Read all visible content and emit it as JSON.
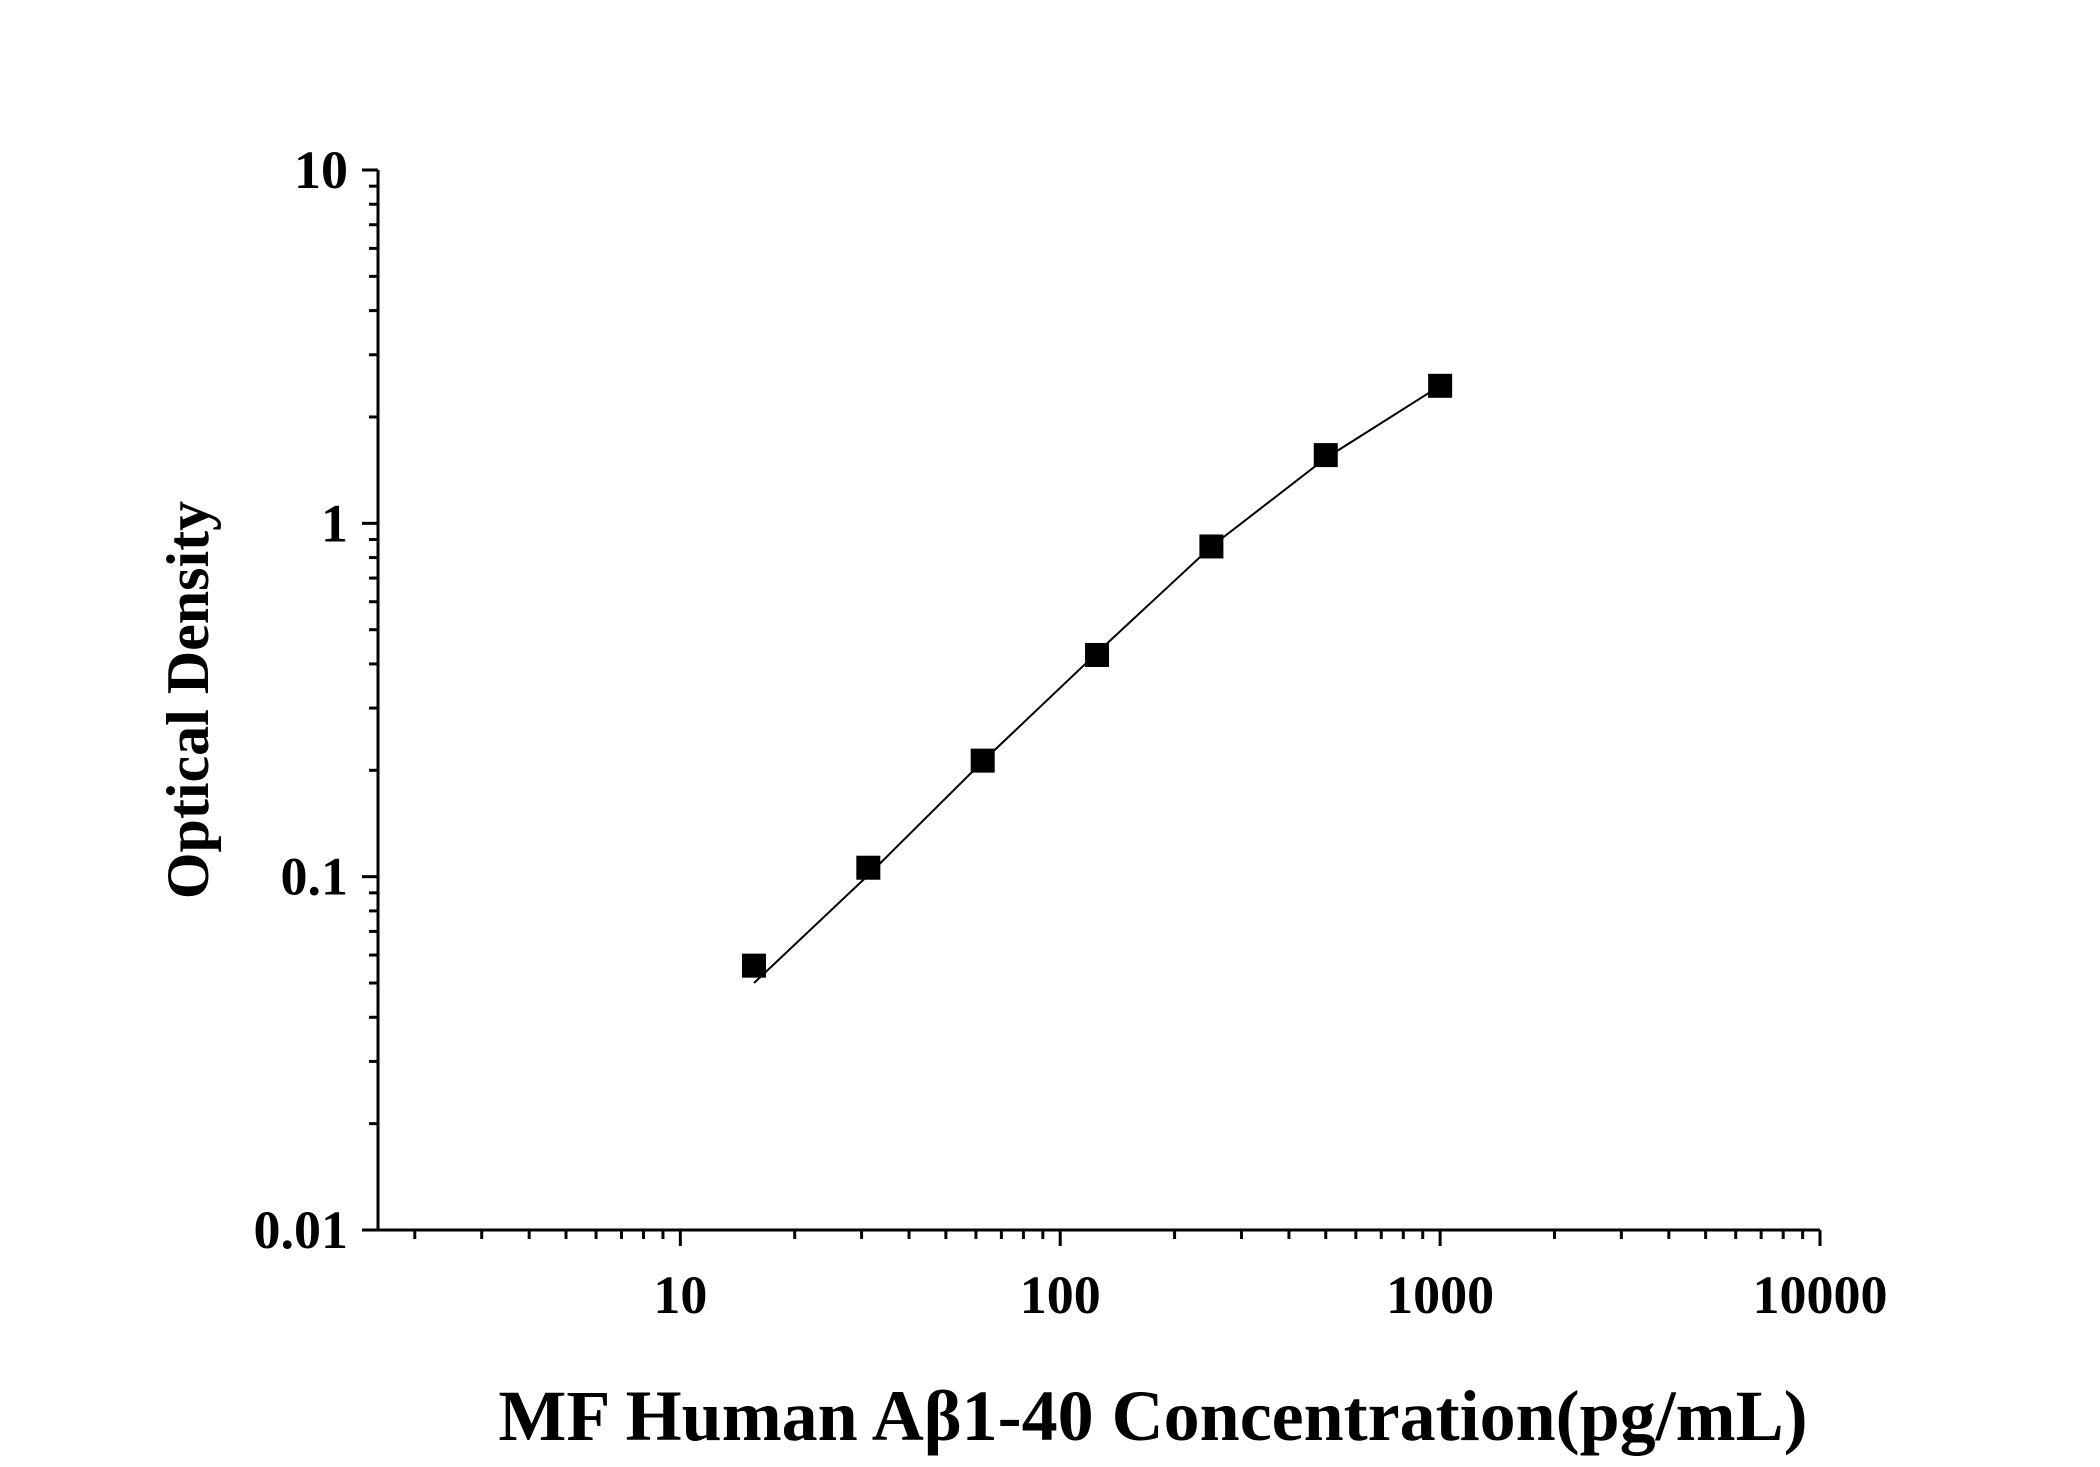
{
  "chart_data": {
    "type": "scatter",
    "title": "",
    "xlabel": "MF Human Aβ1-40 Concentration(pg/mL)",
    "ylabel": "Optical Density",
    "x_scale": "log",
    "y_scale": "log",
    "xlim": [
      1.6,
      10000
    ],
    "ylim": [
      0.01,
      10
    ],
    "x_ticks": [
      "10",
      "100",
      "1000",
      "10000"
    ],
    "y_ticks": [
      "0.01",
      "0.1",
      "1",
      "10"
    ],
    "grid": false,
    "legend": "none",
    "series": [
      {
        "marker": "square",
        "color": "#000000",
        "x": [
          15.625,
          31.25,
          62.5,
          125,
          250,
          500,
          1000
        ],
        "y": [
          0.056,
          0.106,
          0.213,
          0.424,
          0.86,
          1.56,
          2.45
        ]
      }
    ],
    "fit_curve": {
      "color": "#000000",
      "x": [
        15.625,
        31.25,
        62.5,
        125,
        250,
        500,
        1000
      ],
      "y": [
        0.05,
        0.101,
        0.212,
        0.43,
        0.86,
        1.53,
        2.45
      ]
    }
  }
}
